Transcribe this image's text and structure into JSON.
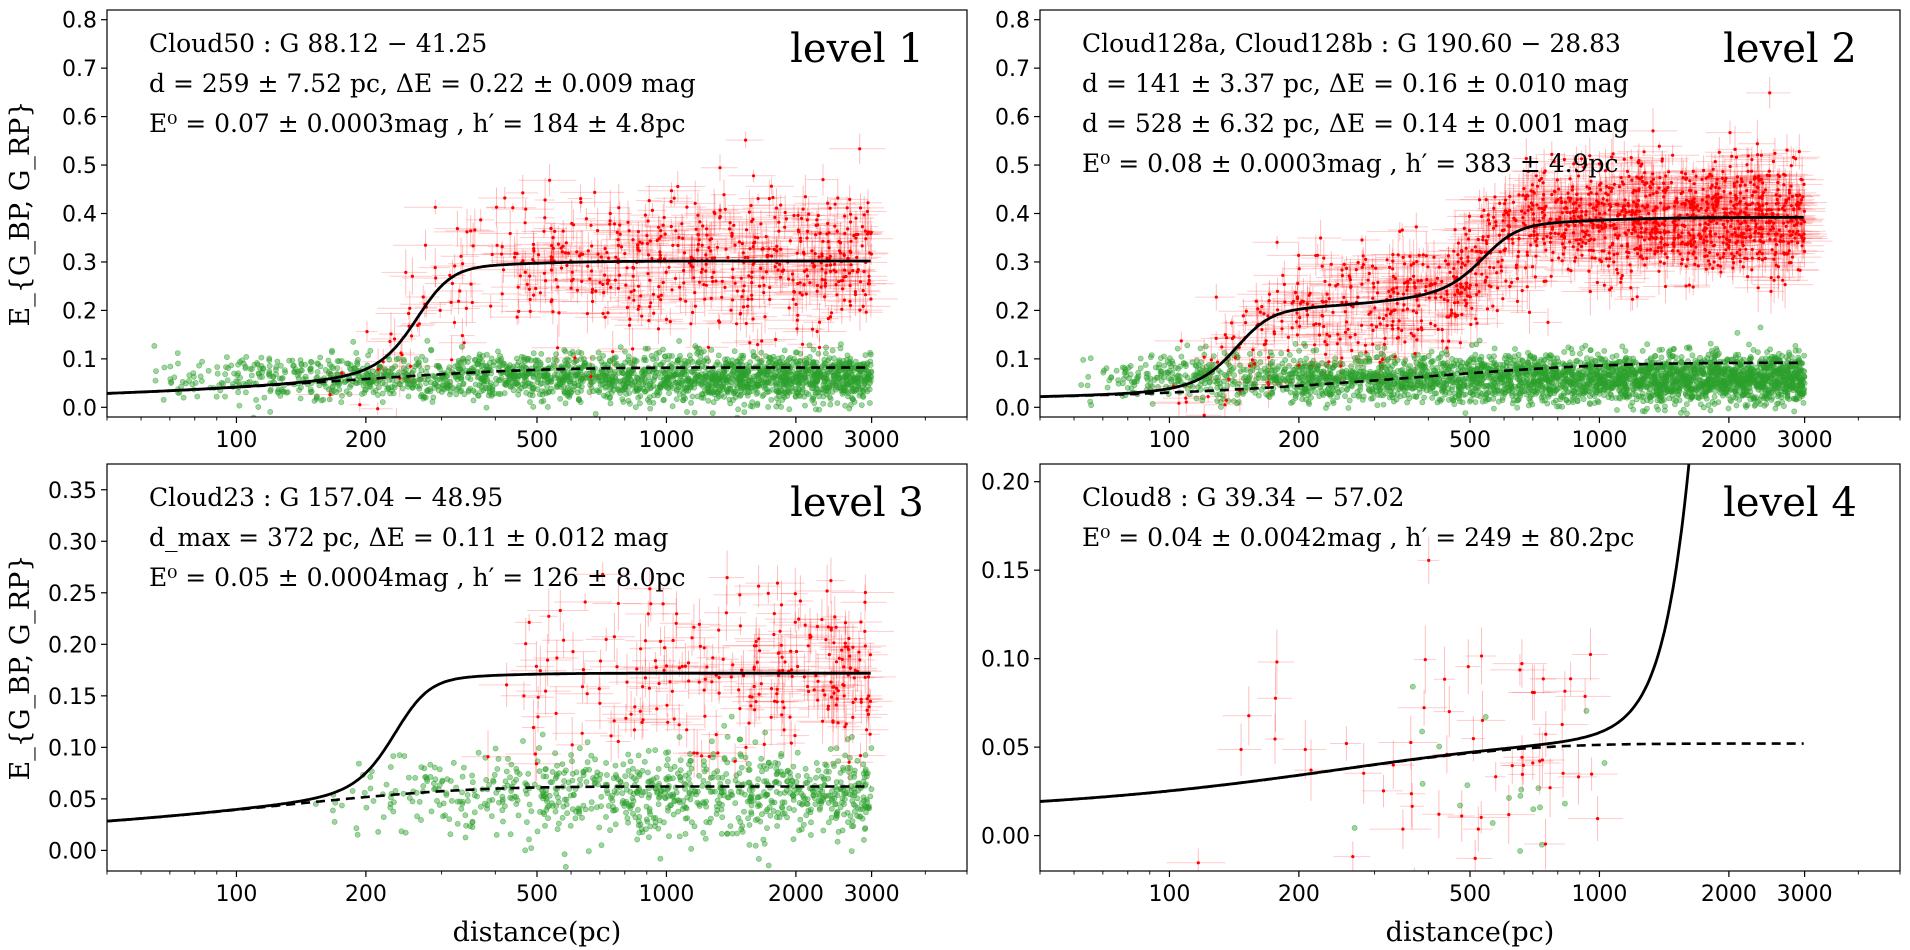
{
  "chart_data": [
    {
      "type": "scatter",
      "panel": "level 1",
      "xscale": "log",
      "xlim": [
        50,
        5000
      ],
      "ylim": [
        -0.02,
        0.82
      ],
      "xticks": [
        100,
        200,
        500,
        1000,
        2000,
        3000
      ],
      "xtick_labels": [
        "100",
        "200",
        "500",
        "1000",
        "2000",
        "3000"
      ],
      "yticks": [
        0.0,
        0.1,
        0.2,
        0.3,
        0.4,
        0.5,
        0.6,
        0.7,
        0.8
      ],
      "ytick_labels": [
        "0.0",
        "0.1",
        "0.2",
        "0.3",
        "0.4",
        "0.5",
        "0.6",
        "0.7",
        "0.8"
      ],
      "ylabel": "E_{G_BP, G_RP}",
      "xlabel": "",
      "level_label": "level 1",
      "annotations": [
        "Cloud50 :  G 88.12 − 41.25",
        "d = 259 ± 7.52 pc,  ΔE = 0.22 ± 0.009 mag",
        "E⁰ = 0.07 ± 0.0003mag ,  h′ = 184 ± 4.8pc"
      ],
      "fit": {
        "E0": 0.07,
        "h": 184,
        "steps": [
          {
            "d": 259,
            "dE": 0.22
          }
        ],
        "solid_max_x": 3000
      },
      "red_points": {
        "n": 620,
        "x_range": [
          160,
          3000
        ],
        "mean_pre": 0.3,
        "mean_post": 0.3,
        "spread": 0.07
      },
      "green_points": {
        "n": 2200,
        "x_range": [
          60,
          3000
        ],
        "mean": 0.06,
        "spread": 0.035
      }
    },
    {
      "type": "scatter",
      "panel": "level 2",
      "xscale": "log",
      "xlim": [
        50,
        5000
      ],
      "ylim": [
        -0.02,
        0.82
      ],
      "xticks": [
        100,
        200,
        500,
        1000,
        2000,
        3000
      ],
      "xtick_labels": [
        "100",
        "200",
        "500",
        "1000",
        "2000",
        "3000"
      ],
      "yticks": [
        0.0,
        0.1,
        0.2,
        0.3,
        0.4,
        0.5,
        0.6,
        0.7,
        0.8
      ],
      "ytick_labels": [
        "0.0",
        "0.1",
        "0.2",
        "0.3",
        "0.4",
        "0.5",
        "0.6",
        "0.7",
        "0.8"
      ],
      "ylabel": "",
      "xlabel": "",
      "level_label": "level 2",
      "annotations": [
        "Cloud128a,  Cloud128b :  G 190.60 − 28.83",
        "d = 141 ± 3.37 pc,  ΔE = 0.16 ± 0.010 mag",
        "d = 528 ± 6.32 pc,  ΔE = 0.14 ± 0.001 mag",
        "E⁰ = 0.08 ± 0.0003mag ,  h′ = 383 ± 4.9pc"
      ],
      "fit": {
        "E0": 0.08,
        "h": 383,
        "steps": [
          {
            "d": 141,
            "dE": 0.16
          },
          {
            "d": 528,
            "dE": 0.14
          }
        ],
        "solid_max_x": 3000
      },
      "red_points": {
        "n": 1500,
        "x_range": [
          100,
          3000
        ],
        "mean_pre": 0.2,
        "mean_post": 0.35,
        "spread": 0.06
      },
      "green_points": {
        "n": 3200,
        "x_range": [
          60,
          3000
        ],
        "mean": 0.06,
        "spread": 0.035
      }
    },
    {
      "type": "scatter",
      "panel": "level 3",
      "xscale": "log",
      "xlim": [
        50,
        5000
      ],
      "ylim": [
        -0.02,
        0.375
      ],
      "xticks": [
        100,
        200,
        500,
        1000,
        2000,
        3000
      ],
      "xtick_labels": [
        "100",
        "200",
        "500",
        "1000",
        "2000",
        "3000"
      ],
      "yticks": [
        0.0,
        0.05,
        0.1,
        0.15,
        0.2,
        0.25,
        0.3,
        0.35
      ],
      "ytick_labels": [
        "0.00",
        "0.05",
        "0.10",
        "0.15",
        "0.20",
        "0.25",
        "0.30",
        "0.35"
      ],
      "ylabel": "E_{G_BP, G_RP}",
      "xlabel": "distance(pc)",
      "level_label": "level 3",
      "annotations": [
        "Cloud23 :  G 157.04 − 48.95",
        "d_max = 372 pc,  ΔE = 0.11 ± 0.012 mag",
        "E⁰ = 0.05 ± 0.0004mag ,  h′ = 126 ± 8.0pc"
      ],
      "fit": {
        "E0": 0.05,
        "h": 126,
        "steps": [
          {
            "d": 230,
            "dE": 0.11
          }
        ],
        "solid_max_x": 3000
      },
      "red_points": {
        "n": 260,
        "x_range": [
          360,
          3000
        ],
        "mean_pre": 0.18,
        "mean_post": 0.18,
        "spread": 0.04
      },
      "green_points": {
        "n": 900,
        "x_range": [
          150,
          3000
        ],
        "mean": 0.055,
        "spread": 0.03
      }
    },
    {
      "type": "scatter",
      "panel": "level 4",
      "xscale": "log",
      "xlim": [
        50,
        5000
      ],
      "ylim": [
        -0.02,
        0.21
      ],
      "xticks": [
        100,
        200,
        500,
        1000,
        2000,
        3000
      ],
      "xtick_labels": [
        "100",
        "200",
        "500",
        "1000",
        "2000",
        "3000"
      ],
      "yticks": [
        0.0,
        0.05,
        0.1,
        0.15,
        0.2
      ],
      "ytick_labels": [
        "0.00",
        "0.05",
        "0.10",
        "0.15",
        "0.20"
      ],
      "ylabel": "",
      "xlabel": "distance(pc)",
      "level_label": "level 4",
      "annotations": [
        "Cloud8 :     G 39.34 − 57.02",
        "E⁰ = 0.04 ± 0.0042mag ,  h′ = 249 ± 80.2pc"
      ],
      "fit": {
        "E0": 0.04,
        "h": 249,
        "steps": [
          {
            "d": 1800,
            "dE": 0.6
          }
        ],
        "solid_max_x": 1850
      },
      "red_points": {
        "n": 60,
        "x_range": [
          110,
          1000
        ],
        "mean_pre": 0.05,
        "mean_post": 0.05,
        "spread": 0.035
      },
      "green_points": {
        "n": 20,
        "x_range": [
          150,
          1300
        ],
        "mean": 0.03,
        "spread": 0.03
      }
    }
  ],
  "colors": {
    "red": "#ff0000",
    "green": "#2ca02c",
    "fit": "#000000"
  }
}
